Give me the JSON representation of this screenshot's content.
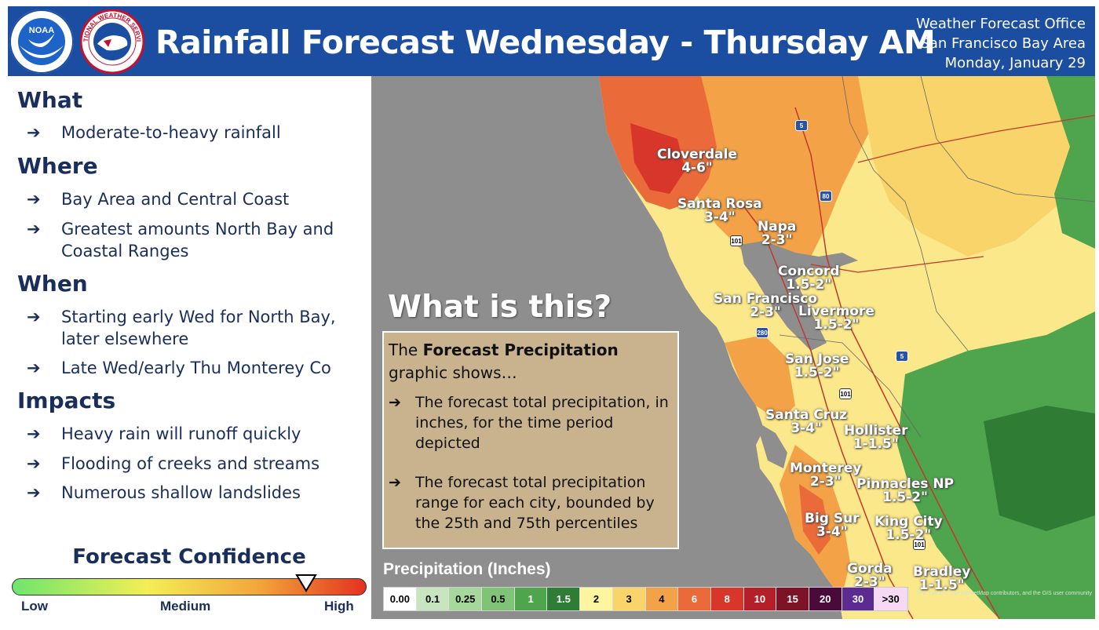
{
  "header": {
    "title": "Rainfall Forecast Wednesday - Thursday AM",
    "office": "Weather Forecast Office",
    "area": "San Francisco Bay Area",
    "date": "Monday, January 29",
    "noaa_logo_text": "NOAA",
    "nws_logo_text": "NATIONAL WEATHER SERVICE"
  },
  "sections": {
    "what": {
      "heading": "What",
      "bullets": [
        "Moderate-to-heavy rainfall"
      ]
    },
    "where": {
      "heading": "Where",
      "bullets": [
        "Bay Area and Central Coast",
        "Greatest amounts North Bay and Coastal Ranges"
      ]
    },
    "when": {
      "heading": "When",
      "bullets": [
        "Starting early Wed for North Bay, later elsewhere",
        "Late Wed/early Thu Monterey Co"
      ]
    },
    "impacts": {
      "heading": "Impacts",
      "bullets": [
        "Heavy rain will runoff quickly",
        "Flooding of creeks and streams",
        "Numerous shallow landslides"
      ]
    }
  },
  "arrow": "➔",
  "confidence": {
    "title": "Forecast Confidence",
    "low": "Low",
    "medium": "Medium",
    "high": "High",
    "level": 0.83
  },
  "what_is_this": {
    "title": "What is this?",
    "intro_pre": "The ",
    "intro_bold": "Forecast Precipitation",
    "intro_post": "graphic shows…",
    "bullets": [
      "The forecast total precipitation, in inches, for the time period depicted",
      "The forecast total precipitation range for each city, bounded by the 25th and 75th percentiles"
    ]
  },
  "legend": {
    "title": "Precipitation (Inches)",
    "entries": [
      {
        "label": "0.00",
        "color": "#ffffff"
      },
      {
        "label": "0.1",
        "color": "#c7e6c0"
      },
      {
        "label": "0.25",
        "color": "#a6d79b"
      },
      {
        "label": "0.5",
        "color": "#7fc476"
      },
      {
        "label": "1",
        "color": "#4fa54d"
      },
      {
        "label": "1.5",
        "color": "#2f7d34"
      },
      {
        "label": "2",
        "color": "#fdf5a0"
      },
      {
        "label": "3",
        "color": "#f9d46a"
      },
      {
        "label": "4",
        "color": "#f3a247"
      },
      {
        "label": "6",
        "color": "#ea6a3a"
      },
      {
        "label": "8",
        "color": "#d9362b"
      },
      {
        "label": "10",
        "color": "#b3202a"
      },
      {
        "label": "15",
        "color": "#7c1327"
      },
      {
        "label": "20",
        "color": "#4a0b3a"
      },
      {
        "label": "30",
        "color": "#5b2c8f"
      },
      {
        "label": ">30",
        "color": "#f6d9f4"
      }
    ]
  },
  "cities": [
    {
      "name": "Cloverdale",
      "range": "4-6\""
    },
    {
      "name": "Santa Rosa",
      "range": "3-4\""
    },
    {
      "name": "Napa",
      "range": "2-3\""
    },
    {
      "name": "Concord",
      "range": "1.5-2\""
    },
    {
      "name": "San Francisco",
      "range": "2-3\""
    },
    {
      "name": "Livermore",
      "range": "1.5-2\""
    },
    {
      "name": "San Jose",
      "range": "1.5-2\""
    },
    {
      "name": "Santa Cruz",
      "range": "3-4\""
    },
    {
      "name": "Hollister",
      "range": "1-1.5\""
    },
    {
      "name": "Monterey",
      "range": "2-3\""
    },
    {
      "name": "Pinnacles NP",
      "range": "1.5-2\""
    },
    {
      "name": "Big Sur",
      "range": "3-4\""
    },
    {
      "name": "King City",
      "range": "1.5-2\""
    },
    {
      "name": "Gorda",
      "range": "2-3\""
    },
    {
      "name": "Bradley",
      "range": "1-1.5\""
    }
  ],
  "highway_shields": {
    "i5_north": "5",
    "i80": "80",
    "us101_north": "101",
    "i280": "280",
    "us101_sj": "101",
    "i5_south": "5",
    "us101_south": "101"
  },
  "attribution": "Esri, Garmin, OpenStreetMap contributors, and the GIS user community"
}
